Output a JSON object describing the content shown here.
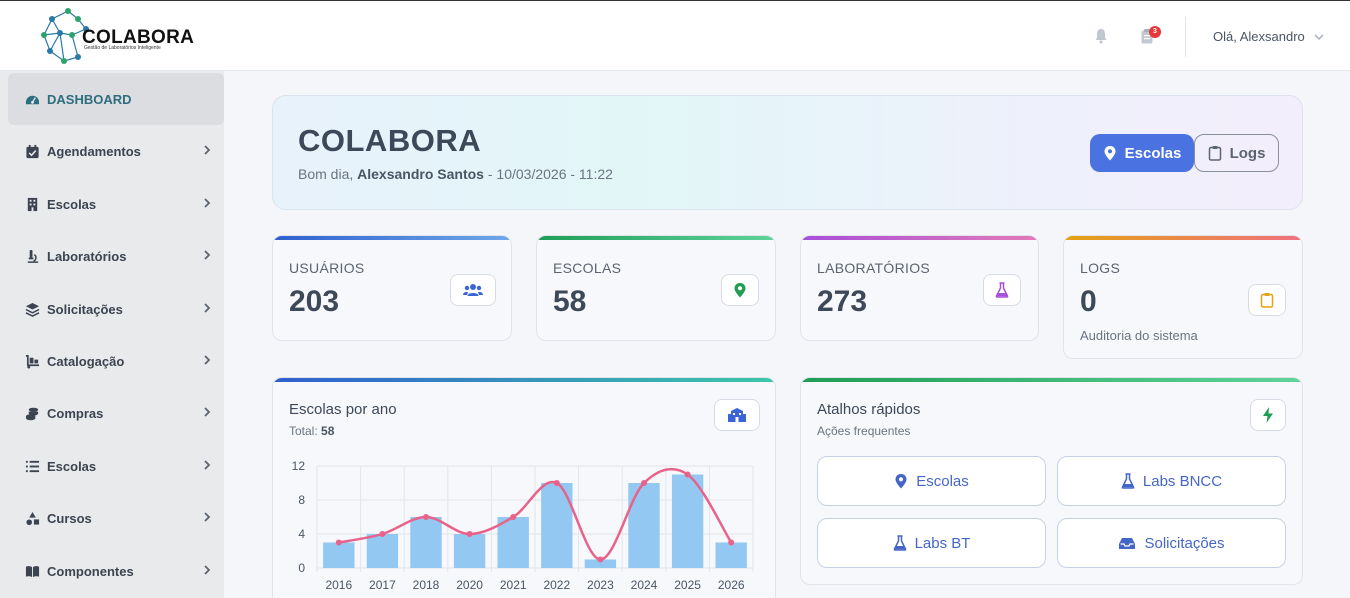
{
  "app": {
    "brand": "COLABORA",
    "brand_sub": "Gestão de Laboratórios Inteligente"
  },
  "topbar": {
    "notifications_icon": "bell-icon",
    "logs_icon": "clipboard-icon",
    "logs_badge": "3",
    "greeting": "Olá, Alexsandro"
  },
  "sidebar": {
    "items": [
      {
        "label": "DASHBOARD",
        "icon": "gauge-icon",
        "active": true
      },
      {
        "label": "Agendamentos",
        "icon": "calendar-check-icon"
      },
      {
        "label": "Escolas",
        "icon": "building-icon"
      },
      {
        "label": "Laboratórios",
        "icon": "microscope-icon"
      },
      {
        "label": "Solicitações",
        "icon": "layers-icon"
      },
      {
        "label": "Catalogação",
        "icon": "dolly-icon"
      },
      {
        "label": "Compras",
        "icon": "coins-icon"
      },
      {
        "label": "Escolas",
        "icon": "list-icon"
      },
      {
        "label": "Cursos",
        "icon": "shapes-icon"
      },
      {
        "label": "Componentes",
        "icon": "book-icon"
      }
    ]
  },
  "hero": {
    "title": "COLABORA",
    "greeting_prefix": "Bom dia,",
    "user_name": "Alexsandro Santos",
    "datetime": "- 10/03/2026 - 11:22",
    "btn_escolas": "Escolas",
    "btn_logs": "Logs"
  },
  "stats": [
    {
      "label": "USUÁRIOS",
      "value": "203",
      "icon": "users-icon",
      "color": "#3b64d8"
    },
    {
      "label": "ESCOLAS",
      "value": "58",
      "icon": "map-pin-icon",
      "color": "#1f9d55"
    },
    {
      "label": "LABORATÓRIOS",
      "value": "273",
      "icon": "flask-icon",
      "color": "#a64fd9"
    },
    {
      "label": "LOGS",
      "value": "0",
      "note": "Auditoria do sistema",
      "icon": "clipboard-icon",
      "color": "#e5a212"
    }
  ],
  "chart_card": {
    "title": "Escolas por ano",
    "total_label": "Total:",
    "total_value": "58",
    "icon": "school-icon"
  },
  "chart_data": {
    "type": "bar",
    "categories": [
      "2016",
      "2017",
      "2018",
      "2020",
      "2021",
      "2022",
      "2023",
      "2024",
      "2025",
      "2026"
    ],
    "series": [
      {
        "type": "bar",
        "values": [
          3,
          4,
          6,
          4,
          6,
          10,
          1,
          10,
          11,
          3
        ],
        "color": "#92c8f2"
      },
      {
        "type": "line",
        "values": [
          3,
          4,
          6,
          4,
          6,
          10,
          1,
          10,
          11,
          3
        ],
        "color": "#e8628a"
      }
    ],
    "yticks": [
      "0",
      "4",
      "8",
      "12"
    ],
    "ylim": [
      0,
      12
    ],
    "grid": true
  },
  "quick_actions": {
    "title": "Atalhos rápidos",
    "subtitle": "Ações frequentes",
    "icon": "bolt-icon",
    "buttons": [
      {
        "label": "Escolas",
        "icon": "map-pin-icon"
      },
      {
        "label": "Labs BNCC",
        "icon": "flask-icon"
      },
      {
        "label": "Labs BT",
        "icon": "flask-icon"
      },
      {
        "label": "Solicitações",
        "icon": "inbox-icon"
      }
    ]
  }
}
